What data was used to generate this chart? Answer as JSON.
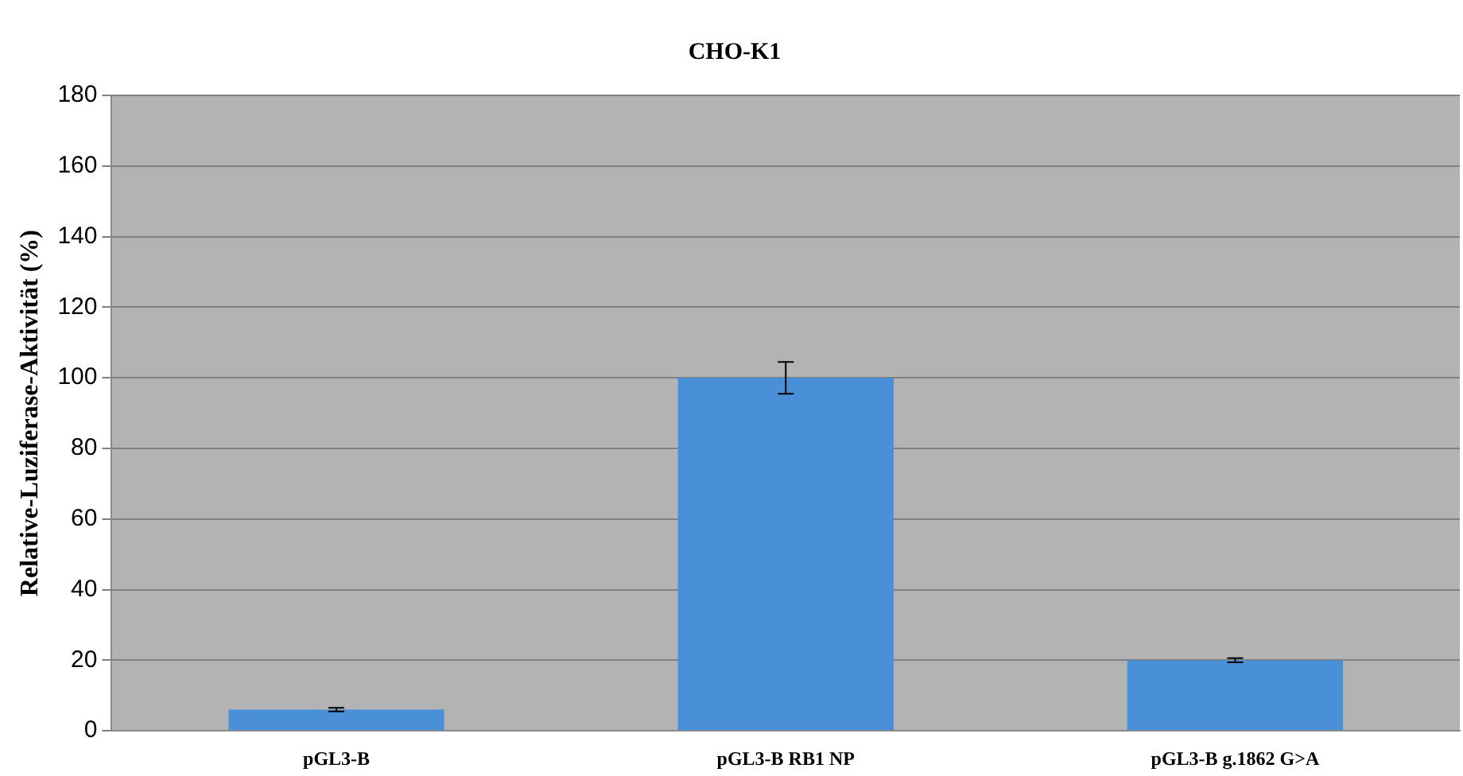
{
  "chart_data": {
    "type": "bar",
    "title": "CHO-K1",
    "ylabel": "Relative-Luziferase-Aktivität (%)",
    "categories": [
      "pGL3-B",
      "pGL3-B RB1 NP",
      "pGL3-B g.1862 G>A"
    ],
    "values": [
      6,
      100,
      20
    ],
    "errors": [
      0.5,
      4.5,
      0.6
    ],
    "color": "#4a90d9",
    "ylim": [
      0,
      180
    ],
    "yticks": [
      0,
      20,
      40,
      60,
      80,
      100,
      120,
      140,
      160,
      180
    ],
    "grid": "y",
    "legend": false
  }
}
